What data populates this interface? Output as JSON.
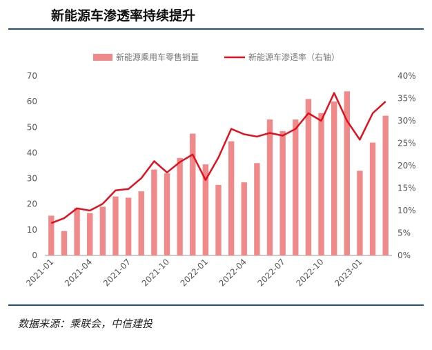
{
  "title": "新能源车渗透率持续提升",
  "source": "数据来源：乘联会，中信建投",
  "colors": {
    "bar": "#f08a8a",
    "line": "#e3101c",
    "rule": "#1d4f91"
  },
  "chart_data": {
    "type": "bar+line",
    "legend": {
      "placement": "top"
    },
    "legend_entries": [
      "新能源乘用车零售销量",
      "新能源车渗透率（右轴）"
    ],
    "grid": false,
    "x": [
      "2021-01",
      "2021-02",
      "2021-03",
      "2021-04",
      "2021-05",
      "2021-06",
      "2021-07",
      "2021-08",
      "2021-09",
      "2021-10",
      "2021-11",
      "2021-12",
      "2022-01",
      "2022-02",
      "2022-03",
      "2022-04",
      "2022-05",
      "2022-06",
      "2022-07",
      "2022-08",
      "2022-09",
      "2022-10",
      "2022-11",
      "2022-12",
      "2023-01",
      "2023-02",
      "2023-03"
    ],
    "x_tick_labels": [
      "2021-01",
      "2021-04",
      "2021-07",
      "2021-10",
      "2022-01",
      "2022-04",
      "2022-07",
      "2022-10",
      "2023-01"
    ],
    "y_left": {
      "lim": [
        0,
        70
      ],
      "ticks": [
        "0",
        "10",
        "20",
        "30",
        "40",
        "50",
        "60",
        "70"
      ]
    },
    "y_right": {
      "lim": [
        0,
        40
      ],
      "ticks": [
        "0%",
        "5%",
        "10%",
        "15%",
        "20%",
        "25%",
        "30%",
        "35%",
        "40%"
      ]
    },
    "series": [
      {
        "name": "新能源乘用车零售销量",
        "type": "bar",
        "axis": "left",
        "values": [
          15.5,
          9.5,
          18.5,
          16.5,
          19,
          23,
          22.5,
          25,
          33.5,
          32,
          38,
          47.5,
          35.5,
          27.5,
          44.5,
          28.5,
          36,
          53,
          48.5,
          53,
          61,
          55.5,
          60,
          64,
          33,
          44,
          54.5
        ]
      },
      {
        "name": "新能源车渗透率（右轴）",
        "type": "line",
        "axis": "right",
        "values": [
          7.2,
          8.3,
          10.5,
          10.0,
          11.5,
          14.5,
          14.8,
          17.2,
          21.0,
          18.5,
          20.8,
          22.5,
          16.8,
          21.8,
          28.2,
          27.0,
          26.5,
          27.3,
          26.7,
          28.2,
          31.7,
          30.0,
          36.2,
          30.0,
          25.8,
          31.7,
          34.3
        ]
      }
    ]
  }
}
